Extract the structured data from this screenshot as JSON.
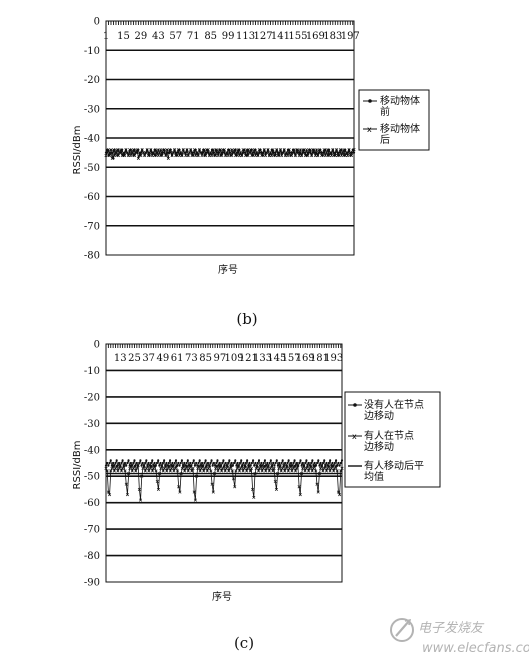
{
  "chart_data": [
    {
      "type": "line",
      "ylabel": "RSSI/dBm",
      "xlabel": "序号",
      "ylim": [
        -80,
        0
      ],
      "yticks": [
        0,
        -10,
        -20,
        -30,
        -40,
        -50,
        -60,
        -70,
        -80
      ],
      "xticks": [
        "1",
        "15",
        "29",
        "43",
        "57",
        "71",
        "85",
        "99",
        "113",
        "127",
        "141",
        "155",
        "169",
        "183",
        "197"
      ],
      "x_range": [
        1,
        200
      ],
      "grid": true,
      "legend_position": "right",
      "caption": "(b)",
      "series": [
        {
          "name": "移动物体前",
          "marker": "dot",
          "values": [
            -45,
            -44,
            -46,
            -45,
            -44,
            -45,
            -47,
            -44,
            -45,
            -46,
            -44,
            -45,
            -45,
            -44,
            -46,
            -45,
            -44,
            -45,
            -46,
            -45,
            -44,
            -45,
            -46,
            -44,
            -45,
            -45,
            -44,
            -46,
            -45,
            -44,
            -45,
            -46,
            -45,
            -44,
            -45,
            -46,
            -44,
            -45,
            -45,
            -44,
            -46,
            -45,
            -44,
            -45,
            -46,
            -45,
            -44,
            -45,
            -46,
            -44,
            -45,
            -45,
            -44,
            -46,
            -45,
            -44,
            -45,
            -46,
            -45,
            -44,
            -45,
            -46,
            -44,
            -45,
            -45,
            -44,
            -46,
            -45,
            -44,
            -45,
            -46,
            -45,
            -44,
            -45,
            -46,
            -44,
            -45,
            -45,
            -44,
            -46,
            -45,
            -44,
            -45,
            -46,
            -45,
            -44,
            -45,
            -46,
            -44,
            -45,
            -45,
            -44,
            -46,
            -45,
            -44,
            -45,
            -46,
            -45,
            -44,
            -45,
            -46,
            -44,
            -45,
            -45,
            -44,
            -46,
            -45,
            -44,
            -45,
            -46,
            -45,
            -44,
            -45,
            -46,
            -44,
            -45,
            -45,
            -44,
            -46,
            -45,
            -44,
            -45,
            -46,
            -45,
            -44,
            -45,
            -46,
            -44,
            -45,
            -45,
            -44,
            -46,
            -45,
            -44,
            -45,
            -46,
            -45,
            -44,
            -45,
            -46,
            -44,
            -45,
            -45,
            -44,
            -46,
            -45,
            -44,
            -45,
            -46,
            -45,
            -44,
            -45,
            -46,
            -44,
            -45,
            -45,
            -44,
            -46,
            -45,
            -44,
            -45,
            -46,
            -45,
            -44,
            -45,
            -46,
            -44,
            -45,
            -45,
            -44,
            -46,
            -45,
            -44,
            -45,
            -46,
            -45,
            -44,
            -45,
            -46,
            -44,
            -45,
            -45,
            -44,
            -46,
            -45,
            -44,
            -45,
            -46,
            -45,
            -44,
            -45,
            -46,
            -44,
            -45,
            -45,
            -44,
            -46,
            -45,
            -44,
            -45
          ]
        },
        {
          "name": "移动物体后",
          "marker": "x",
          "values": [
            -46,
            -45,
            -44,
            -46,
            -45,
            -47,
            -44,
            -46,
            -45,
            -44,
            -46,
            -45,
            -44,
            -46,
            -45,
            -46,
            -44,
            -45,
            -46,
            -44,
            -46,
            -45,
            -44,
            -46,
            -45,
            -44,
            -47,
            -45,
            -46,
            -44,
            -45,
            -46,
            -45,
            -44,
            -46,
            -45,
            -44,
            -46,
            -45,
            -46,
            -44,
            -45,
            -46,
            -45,
            -44,
            -46,
            -45,
            -44,
            -46,
            -45,
            -47,
            -44,
            -45,
            -46,
            -45,
            -44,
            -46,
            -45,
            -44,
            -46,
            -45,
            -46,
            -44,
            -45,
            -46,
            -44,
            -46,
            -45,
            -44,
            -46,
            -45,
            -44,
            -46,
            -45,
            -46,
            -44,
            -45,
            -46,
            -45,
            -44,
            -46,
            -45,
            -44,
            -46,
            -45,
            -46,
            -44,
            -45,
            -46,
            -44,
            -46,
            -45,
            -44,
            -46,
            -45,
            -44,
            -46,
            -45,
            -46,
            -44,
            -45,
            -46,
            -45,
            -44,
            -46,
            -45,
            -44,
            -46,
            -45,
            -46,
            -44,
            -45,
            -46,
            -44,
            -46,
            -45,
            -44,
            -46,
            -45,
            -44,
            -46,
            -45,
            -46,
            -44,
            -45,
            -46,
            -45,
            -44,
            -46,
            -45,
            -44,
            -46,
            -45,
            -46,
            -44,
            -45,
            -46,
            -44,
            -46,
            -45,
            -44,
            -46,
            -45,
            -44,
            -46,
            -45,
            -46,
            -44,
            -45,
            -46,
            -45,
            -44,
            -46,
            -45,
            -44,
            -46,
            -45,
            -46,
            -44,
            -45,
            -46,
            -44,
            -46,
            -45,
            -44,
            -46,
            -45,
            -44,
            -46,
            -45,
            -46,
            -44,
            -45,
            -46,
            -45,
            -44,
            -46,
            -45,
            -44,
            -46,
            -45,
            -46,
            -44,
            -45,
            -46,
            -44,
            -46,
            -45,
            -44,
            -46,
            -45,
            -44,
            -46,
            -45,
            -46,
            -44,
            -45,
            -46,
            -45,
            -44
          ]
        }
      ]
    },
    {
      "type": "line",
      "ylabel": "RSSI/dBm",
      "xlabel": "序号",
      "ylim": [
        -90,
        0
      ],
      "yticks": [
        0,
        -10,
        -20,
        -30,
        -40,
        -50,
        -60,
        -70,
        -80,
        -90
      ],
      "xticks": [
        "13",
        "25",
        "37",
        "49",
        "61",
        "73",
        "85",
        "97",
        "109",
        "121",
        "133",
        "145",
        "157",
        "169",
        "181",
        "193"
      ],
      "x_range": [
        1,
        200
      ],
      "grid": true,
      "legend_position": "right",
      "caption": "(c)",
      "series": [
        {
          "name": "没有人在节点边移动",
          "marker": "dot",
          "values": [
            -46,
            -45,
            -46,
            -45,
            -44,
            -46,
            -45,
            -46,
            -45,
            -44,
            -46,
            -45,
            -46,
            -45,
            -44,
            -46,
            -45,
            -46,
            -45,
            -44,
            -46,
            -45,
            -46,
            -45,
            -44,
            -46,
            -45,
            -46,
            -45,
            -44,
            -46,
            -45,
            -46,
            -45,
            -44,
            -46,
            -45,
            -46,
            -45,
            -44,
            -46,
            -45,
            -46,
            -45,
            -44,
            -46,
            -45,
            -46,
            -45,
            -44,
            -46,
            -45,
            -46,
            -45,
            -44,
            -46,
            -45,
            -46,
            -45,
            -44,
            -46,
            -45,
            -46,
            -45,
            -44,
            -46,
            -45,
            -46,
            -45,
            -44,
            -46,
            -45,
            -46,
            -45,
            -44,
            -46,
            -45,
            -46,
            -45,
            -44,
            -46,
            -45,
            -46,
            -45,
            -44,
            -46,
            -45,
            -46,
            -45,
            -44,
            -46,
            -45,
            -46,
            -45,
            -44,
            -46,
            -45,
            -46,
            -45,
            -44,
            -46,
            -45,
            -46,
            -45,
            -44,
            -46,
            -45,
            -46,
            -45,
            -44,
            -46,
            -45,
            -46,
            -45,
            -44,
            -46,
            -45,
            -46,
            -45,
            -44,
            -46,
            -45,
            -46,
            -45,
            -44,
            -46,
            -45,
            -46,
            -45,
            -44,
            -46,
            -45,
            -46,
            -45,
            -44,
            -46,
            -45,
            -46,
            -45,
            -44,
            -46,
            -45,
            -46,
            -45,
            -44,
            -46,
            -45,
            -46,
            -45,
            -44,
            -46,
            -45,
            -46,
            -45,
            -44,
            -46,
            -45,
            -46,
            -45,
            -44,
            -46,
            -45,
            -46,
            -45,
            -44,
            -46,
            -45,
            -46,
            -45,
            -44,
            -46,
            -45,
            -46,
            -45,
            -44,
            -46,
            -45,
            -46,
            -45,
            -44,
            -46,
            -45,
            -46,
            -45,
            -44,
            -46,
            -45,
            -46,
            -45,
            -44,
            -46,
            -45,
            -46,
            -45,
            -44,
            -46,
            -45,
            -46,
            -45,
            -44
          ]
        },
        {
          "name": "有人在节点边移动",
          "marker": "x",
          "values": [
            -47,
            -48,
            -56,
            -57,
            -48,
            -47,
            -46,
            -48,
            -47,
            -46,
            -48,
            -47,
            -46,
            -48,
            -47,
            -46,
            -48,
            -53,
            -57,
            -49,
            -47,
            -46,
            -48,
            -47,
            -46,
            -48,
            -47,
            -46,
            -55,
            -59,
            -50,
            -47,
            -46,
            -48,
            -47,
            -46,
            -48,
            -47,
            -46,
            -48,
            -47,
            -46,
            -48,
            -52,
            -55,
            -49,
            -47,
            -46,
            -48,
            -47,
            -46,
            -48,
            -47,
            -46,
            -48,
            -47,
            -46,
            -48,
            -47,
            -46,
            -48,
            -54,
            -56,
            -49,
            -47,
            -46,
            -48,
            -47,
            -46,
            -48,
            -47,
            -46,
            -48,
            -47,
            -56,
            -59,
            -50,
            -47,
            -46,
            -48,
            -47,
            -46,
            -48,
            -47,
            -46,
            -48,
            -47,
            -46,
            -48,
            -53,
            -56,
            -49,
            -47,
            -46,
            -48,
            -47,
            -46,
            -48,
            -47,
            -46,
            -48,
            -47,
            -46,
            -48,
            -47,
            -46,
            -48,
            -51,
            -54,
            -48,
            -47,
            -46,
            -48,
            -47,
            -46,
            -48,
            -47,
            -46,
            -48,
            -47,
            -46,
            -48,
            -47,
            -55,
            -58,
            -49,
            -47,
            -46,
            -48,
            -47,
            -46,
            -48,
            -47,
            -46,
            -48,
            -47,
            -46,
            -48,
            -47,
            -46,
            -48,
            -47,
            -52,
            -55,
            -49,
            -47,
            -46,
            -48,
            -47,
            -46,
            -48,
            -47,
            -46,
            -48,
            -47,
            -46,
            -48,
            -47,
            -46,
            -48,
            -47,
            -46,
            -54,
            -57,
            -49,
            -47,
            -46,
            -48,
            -47,
            -46,
            -48,
            -47,
            -46,
            -48,
            -47,
            -46,
            -48,
            -53,
            -56,
            -49,
            -47,
            -46,
            -48,
            -47,
            -46,
            -48,
            -47,
            -46,
            -48,
            -47,
            -46,
            -48,
            -47,
            -46,
            -48,
            -56,
            -57,
            -48,
            -47
          ]
        },
        {
          "name": "有人移动后平均值",
          "marker": "line",
          "values": [
            -49,
            -49,
            -49,
            -49,
            -49,
            -49,
            -49,
            -49,
            -49,
            -49,
            -49,
            -49,
            -49,
            -49,
            -49,
            -49,
            -49,
            -49,
            -49,
            -49,
            -49,
            -49,
            -49,
            -49,
            -49,
            -49,
            -49,
            -49,
            -49,
            -49,
            -49,
            -49,
            -49,
            -49,
            -49,
            -49,
            -49,
            -49,
            -49,
            -49,
            -49,
            -49,
            -49,
            -49,
            -49,
            -49,
            -49,
            -49,
            -49,
            -49,
            -49,
            -49,
            -49,
            -49,
            -49,
            -49,
            -49,
            -49,
            -49,
            -49,
            -49,
            -49,
            -49,
            -49,
            -49,
            -49,
            -49,
            -49,
            -49,
            -49,
            -49,
            -49,
            -49,
            -49,
            -49,
            -49,
            -49,
            -49,
            -49,
            -49,
            -49,
            -49,
            -49,
            -49,
            -49,
            -49,
            -49,
            -49,
            -49,
            -49,
            -49,
            -49,
            -49,
            -49,
            -49,
            -49,
            -49,
            -49,
            -49,
            -49,
            -49,
            -49,
            -49,
            -49,
            -49,
            -49,
            -49,
            -49,
            -49,
            -49,
            -49,
            -49,
            -49,
            -49,
            -49,
            -49,
            -49,
            -49,
            -49,
            -49,
            -49,
            -49,
            -49,
            -49,
            -49,
            -49,
            -49,
            -49,
            -49,
            -49,
            -49,
            -49,
            -49,
            -49,
            -49,
            -49,
            -49,
            -49,
            -49,
            -49,
            -49,
            -49,
            -49,
            -49,
            -49,
            -49,
            -49,
            -49,
            -49,
            -49,
            -49,
            -49,
            -49,
            -49,
            -49,
            -49,
            -49,
            -49,
            -49,
            -49,
            -49,
            -49,
            -49,
            -49,
            -49,
            -49,
            -49,
            -49,
            -49,
            -49,
            -49,
            -49,
            -49,
            -49,
            -49,
            -49,
            -49,
            -49,
            -49,
            -49,
            -49,
            -49,
            -49,
            -49,
            -49,
            -49,
            -49,
            -49,
            -49,
            -49,
            -49,
            -49,
            -49,
            -49,
            -49,
            -49,
            -49,
            -49,
            -49,
            -49
          ]
        }
      ]
    }
  ],
  "captions": {
    "b": "(b)",
    "c": "(c)"
  },
  "watermark": {
    "text": "电子发烧友",
    "url": "www.elecfans.com"
  }
}
